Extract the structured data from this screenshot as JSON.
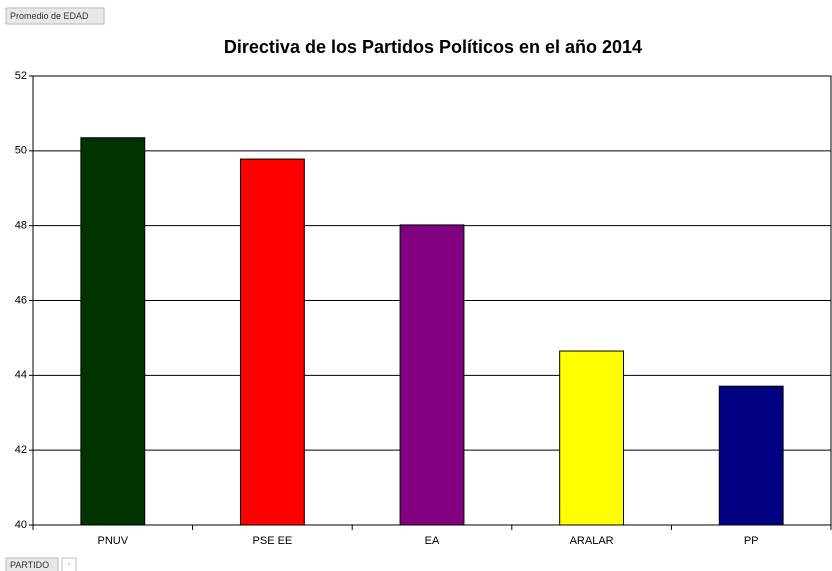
{
  "chart_data": {
    "type": "bar",
    "title": "Directiva de los Partidos Políticos en el año 2014",
    "data_field": "Promedio de EDAD",
    "category_field": "PARTIDO",
    "categories": [
      "PNUV",
      "PSE EE",
      "EA",
      "ARALAR",
      "PP"
    ],
    "values": [
      50.35,
      49.78,
      48.02,
      44.65,
      43.71
    ],
    "colors": [
      "#003300",
      "#ff0000",
      "#800080",
      "#ffff00",
      "#000080"
    ],
    "ylim": [
      40,
      52
    ],
    "yticks": [
      40,
      42,
      44,
      46,
      48,
      50,
      52
    ],
    "grid": true
  }
}
